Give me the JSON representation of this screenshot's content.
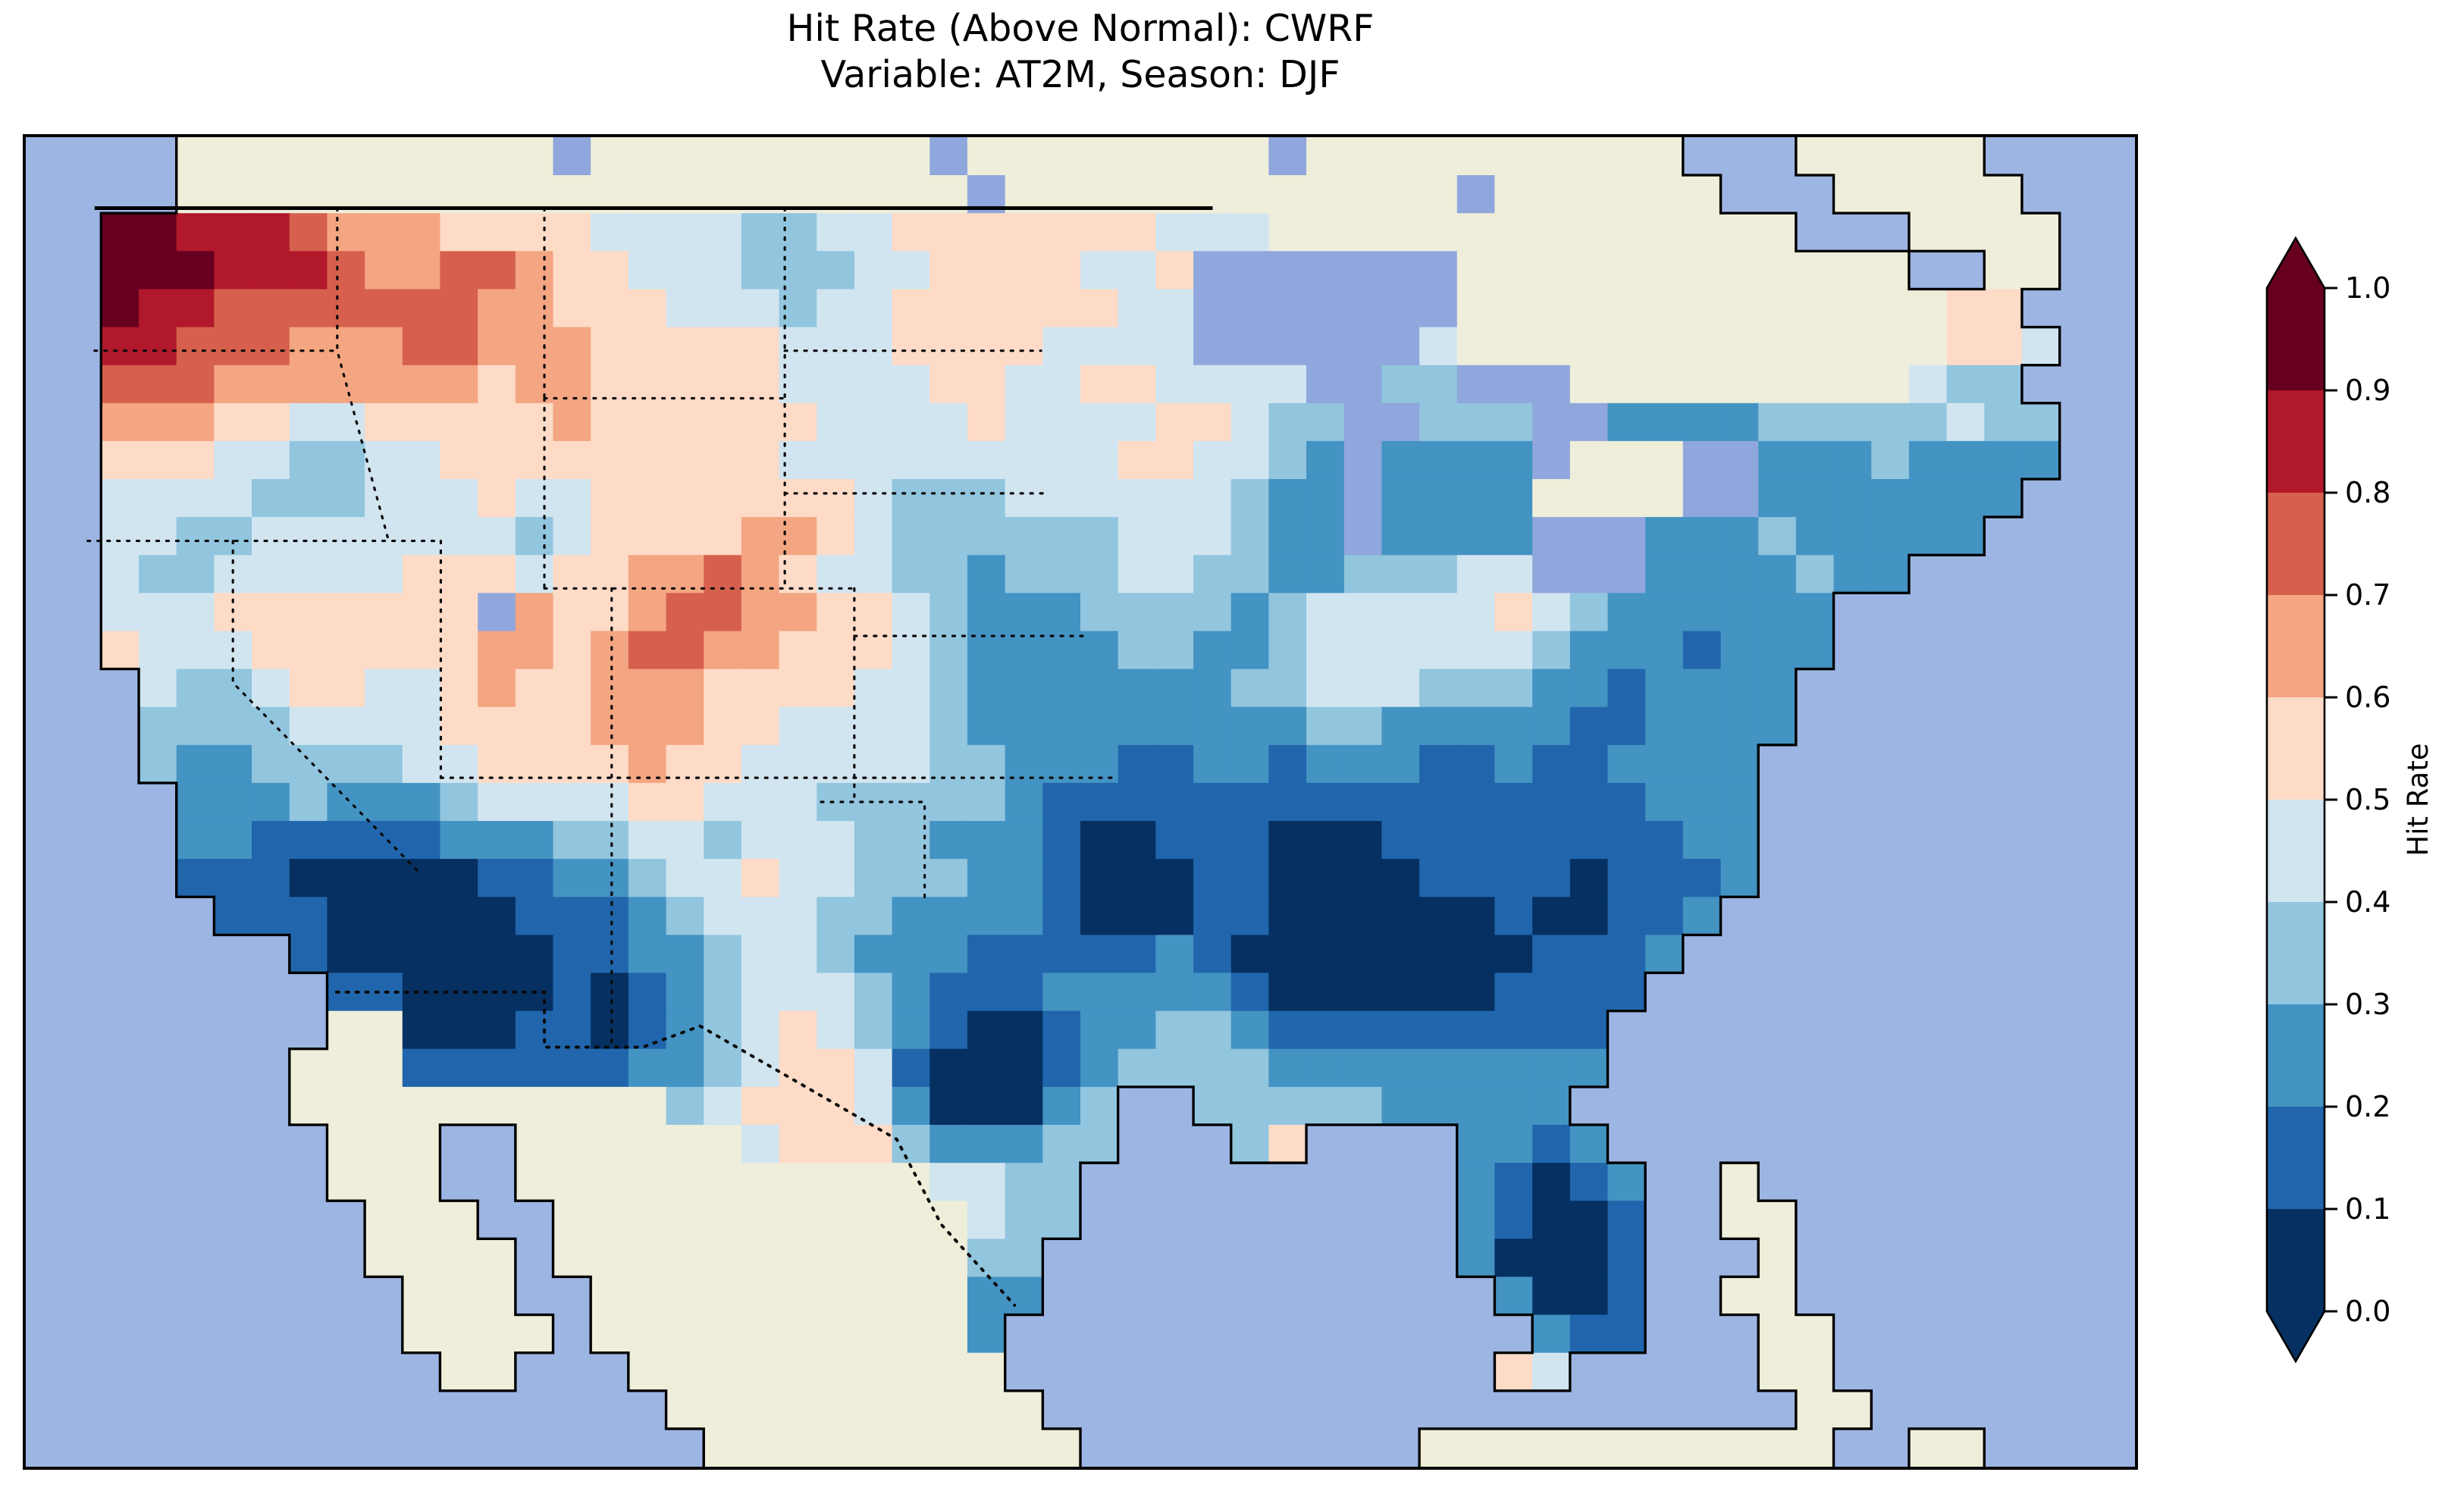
{
  "title": {
    "line1": "Hit Rate (Above Normal): CWRF",
    "line2": "Variable: AT2M, Season: DJF"
  },
  "colorbar": {
    "label": "Hit Rate",
    "ticks": [
      "1.0",
      "0.9",
      "0.8",
      "0.7",
      "0.6",
      "0.5",
      "0.4",
      "0.3",
      "0.2",
      "0.1",
      "0.0"
    ],
    "bin_colors_low_to_high": [
      "#053061",
      "#2166ac",
      "#4393c3",
      "#92c5de",
      "#d1e5f0",
      "#fddbc7",
      "#f4a582",
      "#d6604d",
      "#b2182b",
      "#67001f"
    ],
    "arrow_over_color": "#67001f",
    "arrow_under_color": "#053061",
    "outline_color": "#000000"
  },
  "map": {
    "ocean_color": "#9db5e3",
    "land_color": "#eeeeda",
    "lake_color": "#8fa7dc",
    "coastline_color": "#000000",
    "frame_color": "#000000"
  },
  "chart_data": {
    "type": "heatmap",
    "title": "Hit Rate (Above Normal): CWRF",
    "subtitle": "Variable: AT2M, Season: DJF",
    "metric": "Hit Rate (Above Normal)",
    "model": "CWRF",
    "variable": "AT2M",
    "season": "DJF",
    "colorbar_label": "Hit Rate",
    "value_bounds": [
      0.0,
      0.1,
      0.2,
      0.3,
      0.4,
      0.5,
      0.6,
      0.7,
      0.8,
      0.9,
      1.0
    ],
    "legend_position": "right",
    "grid_encoding": {
      "~": "ocean (no data)",
      "L": "non-US land (no data)",
      "K": "lake",
      "digits": "hit-rate bin index i covers value range [i/10,(i+1)/10]; 0=0.0-0.1 (dark navy) ... 9=0.9-1.0 (dark maroon)",
      "columns": 56,
      "rows_count": 35,
      "approx_extent": {
        "lon_min": -126,
        "lon_max": -65,
        "lat_min": 22.5,
        "lat_max": 50.5
      }
    },
    "rows": [
      "~~~~LLLLLLLLLLKLLLLLLLLLKLLLLLLLLKLLLLLLLLLL~~~LLLLL~~~~",
      "~~~~LLLLLLLLLLLLLLLLLLLLLKLLLLLLLLLLLLKLLLLLL~~~LLLLL~~~",
      "~~9988876665555444433445555555444LLLLLLLLLLLLLL~~~LLLL~~",
      "~~99988876677655444333445555445KKKKKKKLLLLLLLLLLLL~~LL~~",
      "~~98877777776655544434455555544KKKKKKKLLLLLLLLLLLLL55~~~",
      "~~88777666776665555544455554444KKKKKK4LLLLLLLLLLLLL554~~",
      "~~77766666665665555544445544554444KK33KKKLLLLLLLLL433~~~",
      "~~666554455555655555544445444455433KK333KK222233333433~~",
      "~~555443344555555555444444444554432K2222KLLLKK22232222~~",
      "~~444433344454455555554333444444322K2222LLLLKK2222222~~~",
      "~~443344444443455556654333333444322K2222KKK222322222~~~~",
      "~~43344444555455667654433233344332233344KKK2222322~~~~~~",
      "~~4445555555K65567766554322233332344444543222222~~~~~~~~",
      "~~5444555555665677665554322223322344444432221222~~~~~~~~",
      "~~~43345544565566655554432222222334443332212222~~~~~~~~~",
      "~~~33334444555566655444432222222223322222112222~~~~~~~~~",
      "~~~3223333445555655444443322211221222112112222~~~~~~~~~~",
      "~~~~222322234444554443333321111111111111111222~~~~~~~~~~",
      "~~~~221111122233443444332221001110001111111122~~~~~~~~~~",
      "~~~~111000001122344544333221000110000111101112~~~~~~~~~~",
      "~~~~~1110000011123444332222100011000000100112~~~~~~~~~~~",
      "~~~~~~~1000000112234432221111121000000001112~~~~~~~~~~~~",
      "~~~~~~~~11000010123444321112222210000001111~~~~~~~~~~~~~",
      "~~~~~~~~LL00011012345432100122332111111111~~~~~~~~~~~~~~",
      "~~~~~~~LLL11111122345541000123333222222222~~~~~~~~~~~~~~",
      "~~~~~~~LLLLLLLLLL345554200023~~3333322222~~~~~~~~~~~~~~~",
      "~~~~~~~~LLL~~LLLLLL4555322233~~~35~~~~2212~~~~~~~~~~~~~~",
      "~~~~~~~~LLL~~LLLLLLLLLLL4433~~~~~~~~~~21012~~L~~~~~~~~~~",
      "~~~~~~~~~LLL~~LLLLLLLLLLL433~~~~~~~~~~21001~~LL~~~~~~~~~",
      "~~~~~~~~~LLLL~LLLLLLLLLLL33~~~~~~~~~~~20001~~~L~~~~~~~~~",
      "~~~~~~~~~~LLL~~LLLLLLLLLL22~~~~~~~~~~~~2001~~LL~~~~~~~~~",
      "~~~~~~~~~~LLLL~LLLLLLLLLL2~~~~~~~~~~~~~~211~~~LL~~~~~~~~",
      "~~~~~~~~~~~LL~~~LLLLLLLLLL~~~~~~~~~~~~~54~~~~~LL~~~~~~~~",
      "~~~~~~~~~~~~~~~~~LLLLLLLLLL~~~~~~~~~~~~~~~~~~~~LL~~~~~~",
      "~~~~~~~~~~~~~~~~~~LLLLLLLLLL~~~~~~~~~LLLLLLLLLLL~~LL~~~~"
    ]
  }
}
